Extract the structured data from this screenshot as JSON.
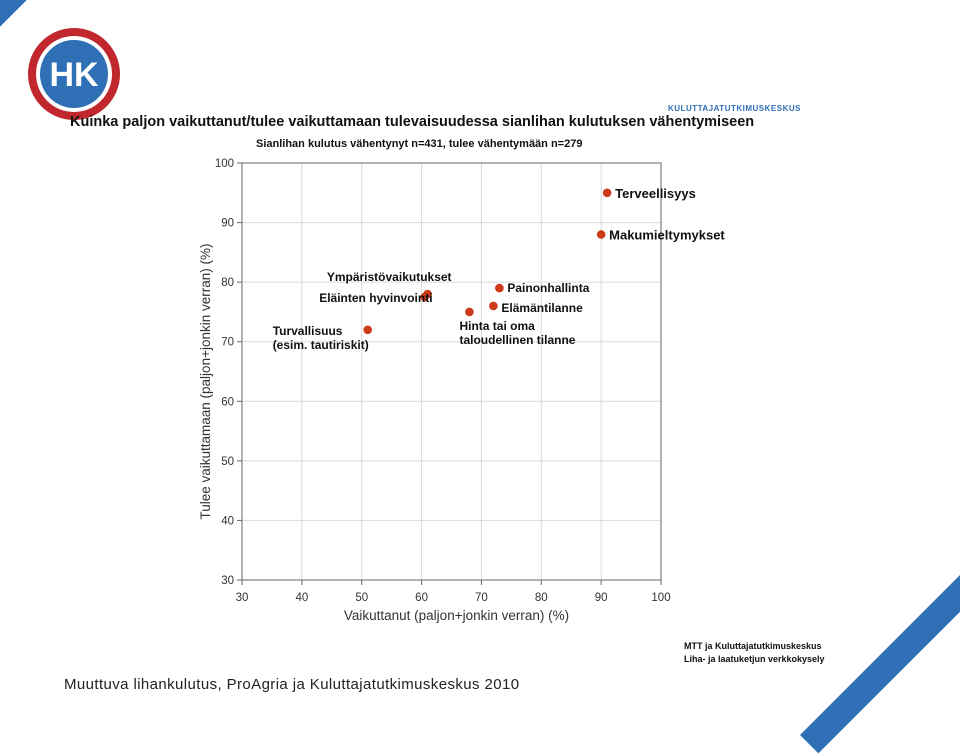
{
  "logo": {
    "text": "HK",
    "colors": {
      "ring": "#c0282d",
      "inner": "#2f6fb5",
      "text": "#ffffff"
    }
  },
  "header": {
    "org_text": "KULUTTAJATUTKIMUSKESKUS"
  },
  "footer": {
    "credit_line1": "MTT ja Kuluttajatutkimuskeskus",
    "credit_line2": "Liha- ja laatuketjun verkkokysely",
    "source": "Muuttuva lihankulutus, ProAgria ja Kuluttajatutkimuskeskus 2010"
  },
  "colors": {
    "accent_blue": "#2f6fb5",
    "point": "#cc3a1a"
  },
  "chart_data": {
    "type": "scatter",
    "title": "Kuinka paljon vaikuttanut/tulee vaikuttamaan tulevaisuudessa sianlihan kulutuksen vähentymiseen",
    "subtitle": "Sianlihan kulutus vähentynyt n=431, tulee vähentymään n=279",
    "xlabel": "Vaikuttanut (paljon+jonkin verran) (%)",
    "ylabel": "Tulee vaikuttamaan (paljon+jonkin verran) (%)",
    "xlim": [
      30,
      100
    ],
    "ylim": [
      30,
      100
    ],
    "xticks": [
      30,
      40,
      50,
      60,
      70,
      80,
      90,
      100
    ],
    "yticks": [
      30,
      40,
      50,
      60,
      70,
      80,
      90,
      100
    ],
    "grid": true,
    "points": [
      {
        "label": "Terveellisyys",
        "x": 91,
        "y": 95
      },
      {
        "label": "Makumieltymykset",
        "x": 90,
        "y": 88
      },
      {
        "label": "Painonhallinta",
        "x": 73,
        "y": 79
      },
      {
        "label": "Elämäntilanne",
        "x": 72,
        "y": 76
      },
      {
        "label": "Hinta tai oma taloudellinen tilanne",
        "x": 68,
        "y": 75
      },
      {
        "label": "Ympäristövaikutukset",
        "x": 61,
        "y": 78
      },
      {
        "label": "Eläinten hyvinvointi",
        "x": 60.5,
        "y": 77.5
      },
      {
        "label": "Turvallisuus (esim. tautiriskit)",
        "x": 51,
        "y": 72
      }
    ]
  }
}
